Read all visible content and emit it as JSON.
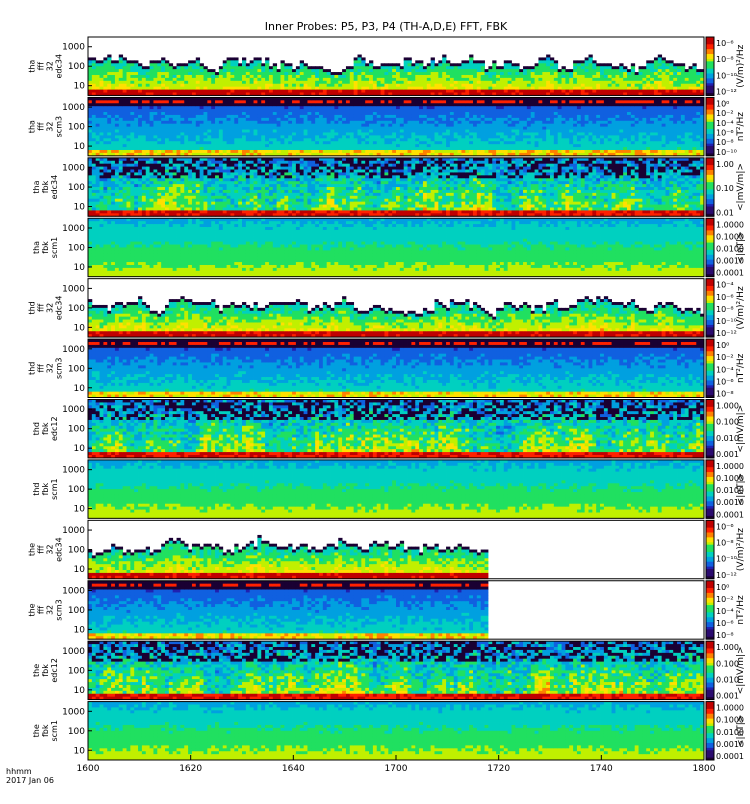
{
  "title": "Inner Probes: P5, P3, P4 (TH-A,D,E) FFT, FBK",
  "footer": {
    "time_unit": "hhmm",
    "date": "2017 Jan 06"
  },
  "colors": {
    "palette": [
      "#1a0033",
      "#2a0a6e",
      "#2020b0",
      "#1060e0",
      "#00a0e0",
      "#00d0c0",
      "#20e060",
      "#c0f000",
      "#ffe000",
      "#ff8000",
      "#ff2000",
      "#c00000"
    ],
    "empty": "#ffffff"
  },
  "chart_data": {
    "type": "heatmap",
    "x_axis": {
      "range": [
        "16:00",
        "18:00"
      ],
      "ticks": [
        "1600",
        "1620",
        "1640",
        "1700",
        "1720",
        "1740",
        "1800"
      ],
      "unit": "hhmm"
    },
    "panels": [
      {
        "id": "tha-fff32-edc34",
        "label": [
          "tha",
          "fff",
          "32",
          "edc34"
        ],
        "y_scale": "log",
        "y_ticks": [
          "1000",
          "100",
          "10"
        ],
        "colorbar_label": "(V/m)²/Hz",
        "colorbar_ticks": [
          "10⁻⁶",
          "10⁻⁸",
          "10⁻¹⁰",
          "10⁻¹²"
        ],
        "style": "efield",
        "data_end_hhmm": "18:00"
      },
      {
        "id": "tha-fff32-scm3",
        "label": [
          "tha",
          "fff",
          "32",
          "scm3"
        ],
        "y_scale": "log",
        "y_ticks": [
          "1000",
          "100",
          "10"
        ],
        "colorbar_label": "nT²/Hz",
        "colorbar_ticks": [
          "10⁰",
          "10⁻²",
          "10⁻⁴",
          "10⁻⁶",
          "10⁻⁸",
          "10⁻¹⁰"
        ],
        "style": "bfield",
        "data_end_hhmm": "18:00"
      },
      {
        "id": "tha-fbk-edc34",
        "label": [
          "tha",
          "fbk",
          "edc34"
        ],
        "y_scale": "log",
        "y_ticks": [
          "1000",
          "100",
          "10"
        ],
        "colorbar_label": "<|mV/m|>",
        "colorbar_ticks": [
          "1.00",
          "0.10",
          "0.01"
        ],
        "style": "fbk_e",
        "data_end_hhmm": "18:00"
      },
      {
        "id": "tha-fbk-scm1",
        "label": [
          "tha",
          "fbk",
          "scm1"
        ],
        "y_scale": "log",
        "y_ticks": [
          "1000",
          "100",
          "10"
        ],
        "colorbar_label": "<|nT|>",
        "colorbar_ticks": [
          "1.0000",
          "0.1000",
          "0.0100",
          "0.0010",
          "0.0001"
        ],
        "style": "fbk_b",
        "data_end_hhmm": "18:00"
      },
      {
        "id": "thd-fff32-edc34",
        "label": [
          "thd",
          "fff",
          "32",
          "edc34"
        ],
        "y_scale": "log",
        "y_ticks": [
          "1000",
          "100",
          "10"
        ],
        "colorbar_label": "(V/m)²/Hz",
        "colorbar_ticks": [
          "10⁻⁴",
          "10⁻⁶",
          "10⁻⁸",
          "10⁻¹⁰",
          "10⁻¹²"
        ],
        "style": "efield",
        "data_end_hhmm": "18:00"
      },
      {
        "id": "thd-fff32-scm3",
        "label": [
          "thd",
          "fff",
          "32",
          "scm3"
        ],
        "y_scale": "log",
        "y_ticks": [
          "1000",
          "100",
          "10"
        ],
        "colorbar_label": "nT²/Hz",
        "colorbar_ticks": [
          "10⁰",
          "10⁻²",
          "10⁻⁴",
          "10⁻⁶",
          "10⁻⁸"
        ],
        "style": "bfield",
        "data_end_hhmm": "18:00"
      },
      {
        "id": "thd-fbk-edc12",
        "label": [
          "thd",
          "fbk",
          "edc12"
        ],
        "y_scale": "log",
        "y_ticks": [
          "1000",
          "100",
          "10"
        ],
        "colorbar_label": "<|mV/m|>",
        "colorbar_ticks": [
          "1.000",
          "0.100",
          "0.010",
          "0.001"
        ],
        "style": "fbk_e",
        "data_end_hhmm": "18:00"
      },
      {
        "id": "thd-fbk-scm1",
        "label": [
          "thd",
          "fbk",
          "scm1"
        ],
        "y_scale": "log",
        "y_ticks": [
          "1000",
          "100",
          "10"
        ],
        "colorbar_label": "<|nT|>",
        "colorbar_ticks": [
          "1.0000",
          "0.1000",
          "0.0100",
          "0.0010",
          "0.0001"
        ],
        "style": "fbk_b",
        "data_end_hhmm": "18:00"
      },
      {
        "id": "the-fff32-edc34",
        "label": [
          "the",
          "fff",
          "32",
          "edc34"
        ],
        "y_scale": "log",
        "y_ticks": [
          "1000",
          "100",
          "10"
        ],
        "colorbar_label": "(V/m)²/Hz",
        "colorbar_ticks": [
          "10⁻⁶",
          "10⁻⁸",
          "10⁻¹⁰",
          "10⁻¹²"
        ],
        "style": "efield",
        "data_end_hhmm": "17:18"
      },
      {
        "id": "the-fff32-scm3",
        "label": [
          "the",
          "fff",
          "32",
          "scm3"
        ],
        "y_scale": "log",
        "y_ticks": [
          "1000",
          "100",
          "10"
        ],
        "colorbar_label": "nT²/Hz",
        "colorbar_ticks": [
          "10⁰",
          "10⁻²",
          "10⁻⁴",
          "10⁻⁶",
          "10⁻⁸"
        ],
        "style": "bfield",
        "data_end_hhmm": "17:18"
      },
      {
        "id": "the-fbk-edc12",
        "label": [
          "the",
          "fbk",
          "edc12"
        ],
        "y_scale": "log",
        "y_ticks": [
          "1000",
          "100",
          "10"
        ],
        "colorbar_label": "<|mV/m|>",
        "colorbar_ticks": [
          "1.000",
          "0.100",
          "0.010",
          "0.001"
        ],
        "style": "fbk_e",
        "data_end_hhmm": "18:00"
      },
      {
        "id": "the-fbk-scm1",
        "label": [
          "the",
          "fbk",
          "scm1"
        ],
        "y_scale": "log",
        "y_ticks": [
          "1000",
          "100",
          "10"
        ],
        "colorbar_label": "<|nT|>",
        "colorbar_ticks": [
          "1.0000",
          "0.1000",
          "0.0100",
          "0.0010",
          "0.0001"
        ],
        "style": "fbk_b",
        "data_end_hhmm": "18:00"
      }
    ]
  }
}
